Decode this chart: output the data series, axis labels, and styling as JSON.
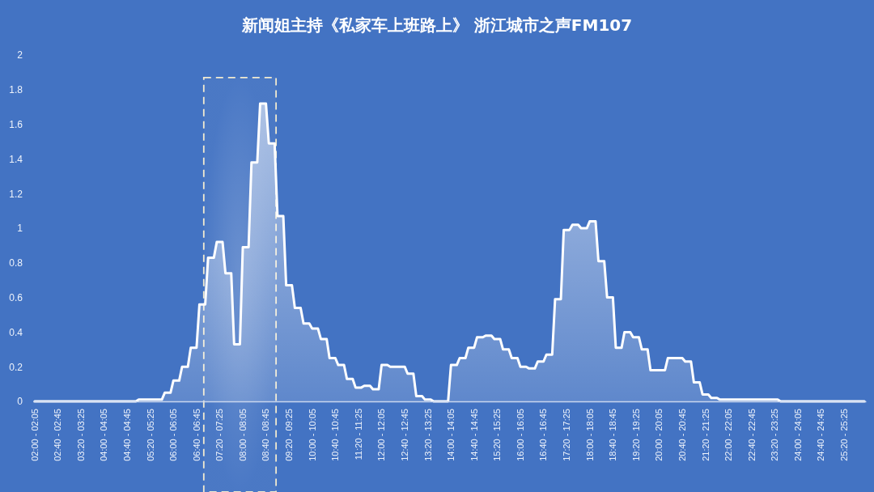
{
  "chart_data": {
    "type": "area",
    "title": "新闻姐主持《私家车上班路上》 浙江城市之声FM107",
    "categories": [
      "02:00 - 02:05",
      null,
      null,
      null,
      null,
      null,
      null,
      null,
      "02:40 - 02:45",
      null,
      null,
      null,
      null,
      null,
      null,
      null,
      "03:20 - 03:25",
      null,
      null,
      null,
      null,
      null,
      null,
      null,
      "04:00 - 04:05",
      null,
      null,
      null,
      null,
      null,
      null,
      null,
      "04:40 - 04:45",
      null,
      null,
      null,
      null,
      null,
      null,
      null,
      "05:20 - 05:25",
      null,
      null,
      null,
      null,
      null,
      null,
      null,
      "06:00 - 06:05",
      null,
      null,
      null,
      null,
      null,
      null,
      null,
      "06:40 - 06:45",
      null,
      null,
      null,
      null,
      null,
      null,
      null,
      "07:20 - 07:25",
      null,
      null,
      null,
      null,
      null,
      null,
      null,
      "08:00 - 08:05",
      null,
      null,
      null,
      null,
      null,
      null,
      null,
      "08:40 - 08:45",
      null,
      null,
      null,
      null,
      null,
      null,
      null,
      "09:20 - 09:25",
      null,
      null,
      null,
      null,
      null,
      null,
      null,
      "10:00 - 10:05",
      null,
      null,
      null,
      null,
      null,
      null,
      null,
      "10:40 - 10:45",
      null,
      null,
      null,
      null,
      null,
      null,
      null,
      "11:20 - 11:25",
      null,
      null,
      null,
      null,
      null,
      null,
      null,
      "12:00 - 12:05",
      null,
      null,
      null,
      null,
      null,
      null,
      null,
      "12:40 - 12:45",
      null,
      null,
      null,
      null,
      null,
      null,
      null,
      "13:20 - 13:25",
      null,
      null,
      null,
      null,
      null,
      null,
      null,
      "14:00 - 14:05",
      null,
      null,
      null,
      null,
      null,
      null,
      null,
      "14:40 - 14:45",
      null,
      null,
      null,
      null,
      null,
      null,
      null,
      "15:20 - 15:25",
      null,
      null,
      null,
      null,
      null,
      null,
      null,
      "16:00 - 16:05",
      null,
      null,
      null,
      null,
      null,
      null,
      null,
      "16:40 - 16:45",
      null,
      null,
      null,
      null,
      null,
      null,
      null,
      "17:20 - 17:25",
      null,
      null,
      null,
      null,
      null,
      null,
      null,
      "18:00 - 18:05",
      null,
      null,
      null,
      null,
      null,
      null,
      null,
      "18:40 - 18:45",
      null,
      null,
      null,
      null,
      null,
      null,
      null,
      "19:20 - 19:25",
      null,
      null,
      null,
      null,
      null,
      null,
      null,
      "20:00 - 20:05",
      null,
      null,
      null,
      null,
      null,
      null,
      null,
      "20:40 - 20:45",
      null,
      null,
      null,
      null,
      null,
      null,
      null,
      "21:20 - 21:25",
      null,
      null,
      null,
      null,
      null,
      null,
      null,
      "22:00 - 22:05",
      null,
      null,
      null,
      null,
      null,
      null,
      null,
      "22:40 - 22:45",
      null,
      null,
      null,
      null,
      null,
      null,
      null,
      "23:20 - 23:25",
      null,
      null,
      null,
      null,
      null,
      null,
      null,
      "24:00 - 24:05",
      null,
      null,
      null,
      null,
      null,
      null,
      null,
      "24:40 - 24:45",
      null,
      null,
      null,
      null,
      null,
      null,
      null,
      "25:20 - 25:25",
      null,
      null,
      null,
      null,
      null,
      null,
      null
    ],
    "values": [
      0,
      0,
      0,
      0,
      0,
      0,
      0,
      0,
      0,
      0,
      0,
      0,
      0,
      0,
      0,
      0,
      0,
      0,
      0,
      0,
      0,
      0,
      0,
      0,
      0,
      0,
      0,
      0,
      0,
      0,
      0,
      0,
      0,
      0,
      0,
      0,
      0.01,
      0.01,
      0.01,
      0.01,
      0.01,
      0.01,
      0.01,
      0.01,
      0.01,
      0.05,
      0.05,
      0.05,
      0.12,
      0.12,
      0.12,
      0.2,
      0.2,
      0.2,
      0.31,
      0.31,
      0.31,
      0.56,
      0.56,
      0.56,
      0.83,
      0.83,
      0.83,
      0.92,
      0.92,
      0.92,
      0.74,
      0.74,
      0.74,
      0.33,
      0.33,
      0.33,
      0.89,
      0.89,
      0.89,
      1.38,
      1.38,
      1.38,
      1.72,
      1.72,
      1.72,
      1.49,
      1.49,
      1.49,
      1.07,
      1.07,
      1.07,
      0.67,
      0.67,
      0.67,
      0.54,
      0.54,
      0.54,
      0.45,
      0.45,
      0.45,
      0.42,
      0.42,
      0.42,
      0.36,
      0.36,
      0.36,
      0.25,
      0.25,
      0.25,
      0.21,
      0.21,
      0.21,
      0.13,
      0.13,
      0.13,
      0.08,
      0.08,
      0.08,
      0.09,
      0.09,
      0.09,
      0.07,
      0.07,
      0.07,
      0.21,
      0.21,
      0.21,
      0.2,
      0.2,
      0.2,
      0.2,
      0.2,
      0.2,
      0.16,
      0.16,
      0.16,
      0.03,
      0.03,
      0.03,
      0.01,
      0.01,
      0.01,
      0,
      0,
      0,
      0,
      0,
      0,
      0.21,
      0.21,
      0.21,
      0.25,
      0.25,
      0.25,
      0.31,
      0.31,
      0.31,
      0.37,
      0.37,
      0.37,
      0.38,
      0.38,
      0.38,
      0.36,
      0.36,
      0.36,
      0.3,
      0.3,
      0.3,
      0.25,
      0.25,
      0.25,
      0.2,
      0.2,
      0.2,
      0.19,
      0.19,
      0.19,
      0.23,
      0.23,
      0.23,
      0.27,
      0.27,
      0.27,
      0.59,
      0.59,
      0.59,
      0.99,
      0.99,
      0.99,
      1.02,
      1.02,
      1.02,
      1,
      1,
      1,
      1.04,
      1.04,
      1.04,
      0.81,
      0.81,
      0.81,
      0.6,
      0.6,
      0.6,
      0.31,
      0.31,
      0.31,
      0.4,
      0.4,
      0.4,
      0.37,
      0.37,
      0.37,
      0.3,
      0.3,
      0.3,
      0.18,
      0.18,
      0.18,
      0.18,
      0.18,
      0.18,
      0.25,
      0.25,
      0.25,
      0.25,
      0.25,
      0.25,
      0.23,
      0.23,
      0.23,
      0.11,
      0.11,
      0.11,
      0.04,
      0.04,
      0.04,
      0.02,
      0.02,
      0.02,
      0.01,
      0.01,
      0.01,
      0.01,
      0.01,
      0.01,
      0.01,
      0.01,
      0.01,
      0.01,
      0.01,
      0.01,
      0.01,
      0.01,
      0.01,
      0.01,
      0.01,
      0.01,
      0.01,
      0.01,
      0.01,
      0,
      0,
      0,
      0,
      0,
      0,
      0,
      0,
      0,
      0,
      0,
      0,
      0,
      0,
      0,
      0,
      0,
      0,
      0,
      0,
      0,
      0,
      0,
      0,
      0,
      0,
      0,
      0,
      0,
      0
    ],
    "color": "#ffffff",
    "ylim": [
      0,
      2
    ],
    "yticks": [
      0,
      0.2,
      0.4,
      0.6,
      0.8,
      1,
      1.2,
      1.4,
      1.6,
      1.8,
      2
    ]
  }
}
